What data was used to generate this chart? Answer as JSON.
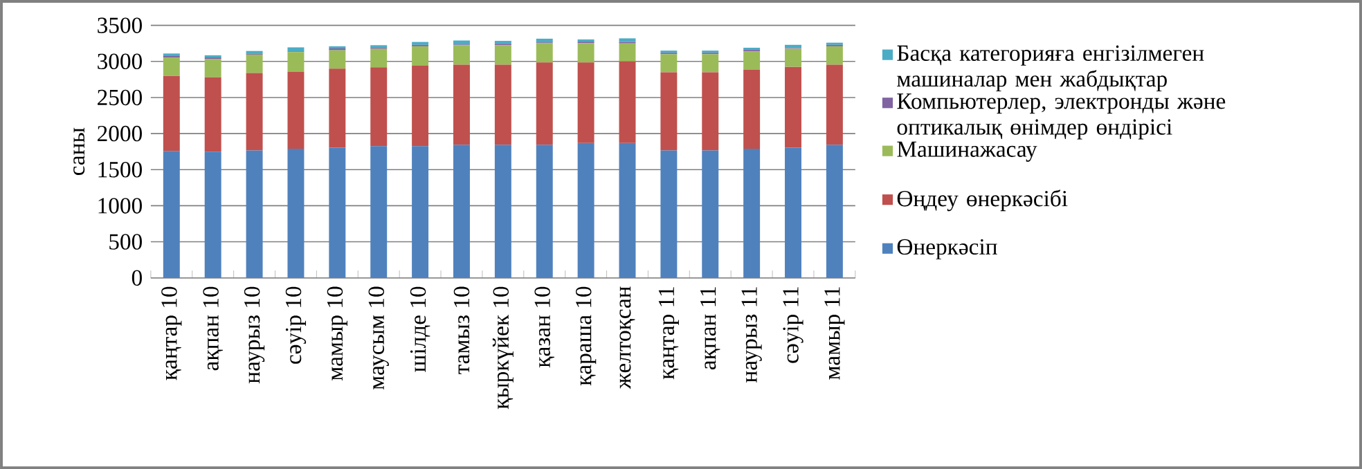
{
  "chart_data": {
    "type": "bar",
    "stacked": true,
    "ylabel": "саны",
    "grid": "y",
    "legend": "right",
    "categories": [
      "қаңтар 10",
      "ақпан 10",
      "наурыз 10",
      "сәуір 10",
      "мамыр 10",
      "маусым 10",
      "шілде 10",
      "тамыз 10",
      "қыркүйек 10",
      "қазан 10",
      "қараша 10",
      "желтоқсан",
      "қаңтар 11",
      "ақпан 11",
      "наурыз 11",
      "сәуір 11",
      "мамыр 11"
    ],
    "ylim": [
      0,
      3500
    ],
    "yticks": [
      0,
      500,
      1000,
      1500,
      2000,
      2500,
      3000,
      3500
    ],
    "series": [
      {
        "name": "Өнеркәсіп",
        "color": "#4f81bd",
        "values": [
          1760,
          1750,
          1765,
          1790,
          1805,
          1825,
          1825,
          1845,
          1845,
          1845,
          1870,
          1870,
          1765,
          1765,
          1790,
          1805,
          1845
        ]
      },
      {
        "name": "Өңдеу өнеркәсібі",
        "color": "#c0504d",
        "values": [
          1040,
          1030,
          1075,
          1070,
          1095,
          1095,
          1115,
          1110,
          1110,
          1140,
          1115,
          1130,
          1085,
          1085,
          1095,
          1120,
          1110
        ]
      },
      {
        "name": "Машинажасау",
        "color": "#9bbb59",
        "values": [
          255,
          255,
          255,
          270,
          255,
          255,
          270,
          270,
          270,
          270,
          270,
          250,
          250,
          250,
          255,
          250,
          255
        ]
      },
      {
        "name": "Компьютерлер, электронды және оптикалық өнімдер өндірісі",
        "color": "#8064a2",
        "values": [
          20,
          20,
          10,
          10,
          25,
          20,
          20,
          10,
          20,
          10,
          20,
          20,
          20,
          20,
          20,
          10,
          20
        ]
      },
      {
        "name": "Басқа категорияға енгізілмеген машиналар мен жабдықтар",
        "color": "#4bacc6",
        "values": [
          35,
          30,
          40,
          55,
          30,
          30,
          40,
          55,
          40,
          50,
          30,
          50,
          30,
          30,
          30,
          45,
          30
        ]
      }
    ]
  }
}
